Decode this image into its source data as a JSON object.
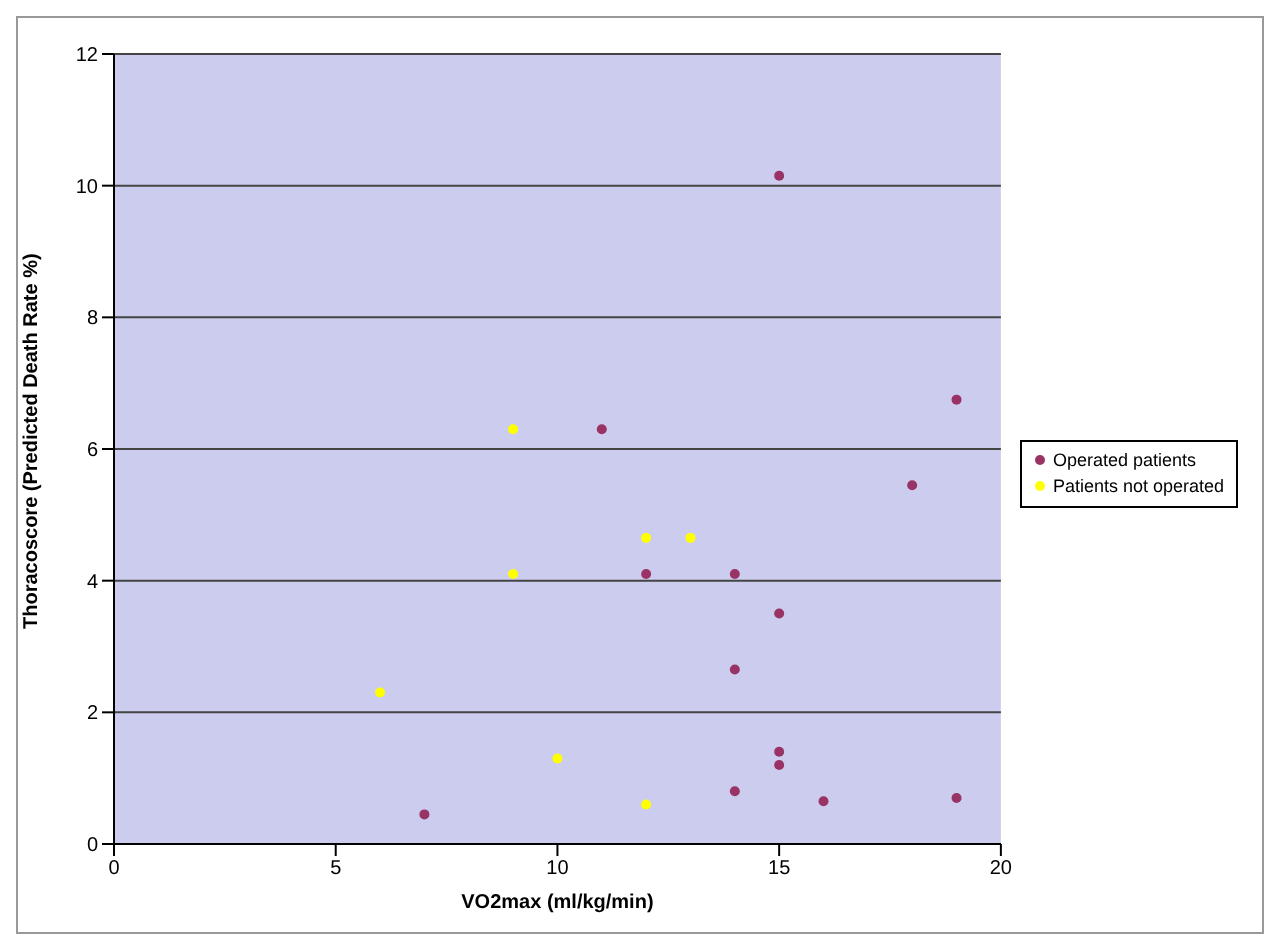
{
  "chart_data": {
    "type": "scatter",
    "xlabel": "VO2max (ml/kg/min)",
    "ylabel": "Thoracoscore (Predicted Death Rate %)",
    "xlim": [
      0,
      20
    ],
    "xticks": [
      0,
      5,
      10,
      15,
      20
    ],
    "ylim": [
      0,
      12
    ],
    "yticks": [
      0,
      2,
      4,
      6,
      8,
      10,
      12
    ],
    "grid": "y",
    "legend": "right",
    "marker": "circle",
    "series": [
      {
        "name": "Operated patients",
        "color": "#993366",
        "x": [
          7,
          11,
          12,
          14,
          14,
          14,
          15,
          15,
          15,
          15,
          16,
          18,
          19,
          19
        ],
        "values": [
          0.45,
          6.3,
          4.1,
          4.1,
          2.65,
          0.8,
          10.15,
          3.5,
          1.4,
          1.2,
          0.65,
          5.45,
          6.75,
          0.7
        ]
      },
      {
        "name": "Patients not operated",
        "color": "#ffff00",
        "x": [
          6,
          9,
          9,
          10,
          12,
          13,
          12
        ],
        "values": [
          2.3,
          6.3,
          4.1,
          1.3,
          4.65,
          4.65,
          0.6
        ]
      }
    ]
  }
}
